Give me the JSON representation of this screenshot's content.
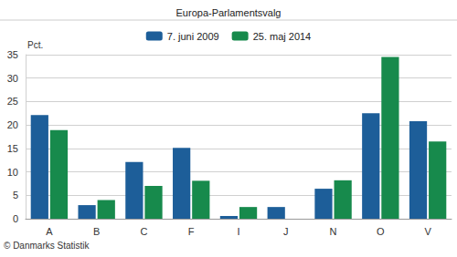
{
  "chart_data": {
    "type": "bar",
    "title": "Europa-Parlamentsvalg",
    "ylabel": "Pct.",
    "source": "© Danmarks Statistik",
    "categories": [
      "A",
      "B",
      "C",
      "F",
      "I",
      "J",
      "N",
      "O",
      "V"
    ],
    "series": [
      {
        "name": "7. juni 2009",
        "color": "#1d5e99",
        "values": [
          22.1,
          2.9,
          12.1,
          15.1,
          0.6,
          2.5,
          6.4,
          22.5,
          20.8
        ]
      },
      {
        "name": "25. maj 2014",
        "color": "#178a4c",
        "values": [
          18.9,
          4.0,
          7.0,
          8.1,
          2.5,
          null,
          8.2,
          34.5,
          16.5
        ]
      }
    ],
    "ylim": [
      0,
      35
    ],
    "yticks": [
      0,
      5,
      10,
      15,
      20,
      25,
      30,
      35
    ],
    "grid": true,
    "legend": "top"
  }
}
